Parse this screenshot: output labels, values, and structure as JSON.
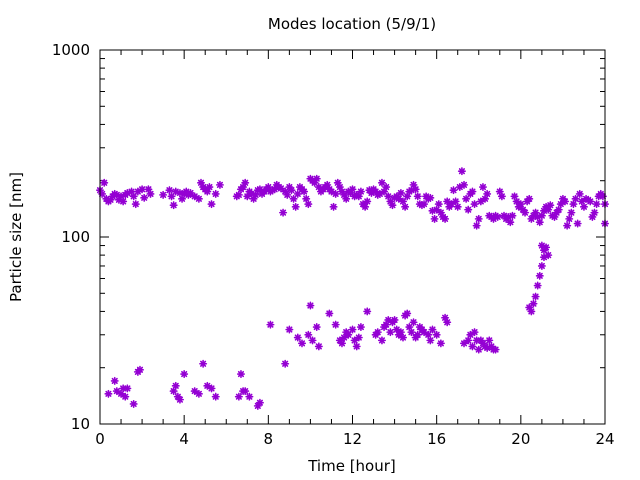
{
  "chart_data": {
    "type": "scatter",
    "title": "Modes location (5/9/1)",
    "xlabel": "Time [hour]",
    "ylabel": "Particle size [nm]",
    "xlim": [
      0,
      24
    ],
    "ylim": [
      10,
      1000
    ],
    "yscale": "log",
    "x_ticks": [
      0,
      4,
      8,
      12,
      16,
      20,
      24
    ],
    "x_tick_labels": [
      "0",
      "4",
      "8",
      "12",
      "16",
      "20",
      "24"
    ],
    "y_ticks": [
      10,
      100,
      1000
    ],
    "y_tick_labels": [
      "10",
      "100",
      "1000"
    ],
    "marker": "asterisk",
    "marker_color": "#9400D3",
    "grid": false,
    "legend": "none",
    "series": [
      {
        "points": [
          [
            0.0,
            178
          ],
          [
            0.1,
            170
          ],
          [
            0.2,
            195
          ],
          [
            0.3,
            160
          ],
          [
            0.4,
            155
          ],
          [
            0.5,
            158
          ],
          [
            0.6,
            165
          ],
          [
            0.7,
            170
          ],
          [
            0.8,
            168
          ],
          [
            0.9,
            158
          ],
          [
            1.0,
            165
          ],
          [
            1.1,
            155
          ],
          [
            1.2,
            168
          ],
          [
            1.3,
            172
          ],
          [
            1.5,
            175
          ],
          [
            1.6,
            165
          ],
          [
            1.7,
            150
          ],
          [
            1.8,
            175
          ],
          [
            2.0,
            180
          ],
          [
            2.1,
            162
          ],
          [
            2.3,
            180
          ],
          [
            2.4,
            170
          ],
          [
            3.0,
            168
          ],
          [
            3.3,
            178
          ],
          [
            3.4,
            165
          ],
          [
            3.5,
            148
          ],
          [
            3.6,
            175
          ],
          [
            3.8,
            172
          ],
          [
            3.9,
            160
          ],
          [
            4.0,
            170
          ],
          [
            4.1,
            175
          ],
          [
            4.2,
            168
          ],
          [
            4.3,
            172
          ],
          [
            4.5,
            165
          ],
          [
            4.7,
            160
          ],
          [
            4.8,
            195
          ],
          [
            4.9,
            185
          ],
          [
            5.0,
            180
          ],
          [
            5.1,
            175
          ],
          [
            5.2,
            185
          ],
          [
            5.3,
            150
          ],
          [
            5.5,
            170
          ],
          [
            5.7,
            190
          ],
          [
            6.5,
            165
          ],
          [
            6.6,
            168
          ],
          [
            6.7,
            180
          ],
          [
            6.8,
            185
          ],
          [
            6.9,
            195
          ],
          [
            7.0,
            165
          ],
          [
            7.1,
            175
          ],
          [
            7.2,
            170
          ],
          [
            7.3,
            160
          ],
          [
            7.4,
            168
          ],
          [
            7.5,
            178
          ],
          [
            7.6,
            180
          ],
          [
            7.7,
            170
          ],
          [
            7.8,
            175
          ],
          [
            7.9,
            180
          ],
          [
            8.0,
            185
          ],
          [
            8.1,
            175
          ],
          [
            8.2,
            178
          ],
          [
            8.3,
            180
          ],
          [
            8.4,
            190
          ],
          [
            8.5,
            185
          ],
          [
            8.6,
            182
          ],
          [
            8.7,
            135
          ],
          [
            8.8,
            175
          ],
          [
            8.9,
            168
          ],
          [
            9.0,
            185
          ],
          [
            9.1,
            178
          ],
          [
            9.2,
            160
          ],
          [
            9.3,
            145
          ],
          [
            9.4,
            170
          ],
          [
            9.5,
            185
          ],
          [
            9.6,
            180
          ],
          [
            9.7,
            175
          ],
          [
            9.8,
            160
          ],
          [
            9.9,
            150
          ],
          [
            10.0,
            205
          ],
          [
            10.1,
            200
          ],
          [
            10.2,
            195
          ],
          [
            10.3,
            205
          ],
          [
            10.4,
            185
          ],
          [
            10.5,
            175
          ],
          [
            10.6,
            180
          ],
          [
            10.7,
            185
          ],
          [
            10.8,
            190
          ],
          [
            10.9,
            180
          ],
          [
            11.0,
            175
          ],
          [
            11.1,
            145
          ],
          [
            11.2,
            170
          ],
          [
            11.3,
            195
          ],
          [
            11.4,
            185
          ],
          [
            11.5,
            175
          ],
          [
            11.6,
            168
          ],
          [
            11.7,
            160
          ],
          [
            11.8,
            175
          ],
          [
            11.9,
            172
          ],
          [
            12.0,
            180
          ],
          [
            12.1,
            165
          ],
          [
            12.2,
            168
          ],
          [
            12.3,
            165
          ],
          [
            12.4,
            175
          ],
          [
            12.5,
            150
          ],
          [
            12.6,
            145
          ],
          [
            12.7,
            155
          ],
          [
            12.8,
            178
          ],
          [
            12.9,
            172
          ],
          [
            13.0,
            180
          ],
          [
            13.1,
            175
          ],
          [
            13.2,
            168
          ],
          [
            13.3,
            170
          ],
          [
            13.4,
            195
          ],
          [
            13.5,
            175
          ],
          [
            13.6,
            185
          ],
          [
            13.7,
            165
          ],
          [
            13.8,
            155
          ],
          [
            13.9,
            148
          ],
          [
            14.0,
            162
          ],
          [
            14.1,
            165
          ],
          [
            14.2,
            160
          ],
          [
            14.3,
            172
          ],
          [
            14.4,
            155
          ],
          [
            14.5,
            145
          ],
          [
            14.6,
            165
          ],
          [
            14.7,
            175
          ],
          [
            14.8,
            178
          ],
          [
            14.9,
            190
          ],
          [
            15.0,
            180
          ],
          [
            15.1,
            165
          ],
          [
            15.2,
            150
          ],
          [
            15.3,
            148
          ],
          [
            15.4,
            150
          ],
          [
            15.5,
            165
          ],
          [
            15.6,
            160
          ],
          [
            15.7,
            162
          ],
          [
            15.8,
            138
          ],
          [
            15.9,
            125
          ],
          [
            16.0,
            140
          ],
          [
            16.1,
            150
          ],
          [
            16.2,
            135
          ],
          [
            16.3,
            128
          ],
          [
            16.4,
            125
          ],
          [
            16.5,
            155
          ],
          [
            16.6,
            145
          ],
          [
            16.7,
            150
          ],
          [
            16.8,
            178
          ],
          [
            16.9,
            155
          ],
          [
            17.0,
            145
          ],
          [
            17.1,
            185
          ],
          [
            17.2,
            225
          ],
          [
            17.3,
            190
          ],
          [
            17.4,
            160
          ],
          [
            17.5,
            140
          ],
          [
            17.6,
            170
          ],
          [
            17.7,
            175
          ],
          [
            17.8,
            150
          ],
          [
            17.9,
            115
          ],
          [
            18.0,
            125
          ],
          [
            18.1,
            155
          ],
          [
            18.2,
            185
          ],
          [
            18.3,
            160
          ],
          [
            18.4,
            170
          ],
          [
            18.5,
            130
          ],
          [
            18.6,
            128
          ],
          [
            18.7,
            125
          ],
          [
            18.8,
            130
          ],
          [
            18.9,
            128
          ],
          [
            19.0,
            175
          ],
          [
            19.1,
            165
          ],
          [
            19.2,
            130
          ],
          [
            19.3,
            125
          ],
          [
            19.4,
            128
          ],
          [
            19.5,
            120
          ],
          [
            19.6,
            130
          ],
          [
            19.7,
            165
          ],
          [
            19.8,
            155
          ],
          [
            19.9,
            145
          ],
          [
            20.0,
            150
          ],
          [
            20.1,
            140
          ],
          [
            20.2,
            135
          ],
          [
            20.3,
            155
          ],
          [
            20.4,
            160
          ],
          [
            20.5,
            125
          ],
          [
            20.6,
            130
          ],
          [
            20.7,
            135
          ],
          [
            20.8,
            128
          ],
          [
            20.9,
            120
          ],
          [
            21.0,
            130
          ],
          [
            21.1,
            138
          ],
          [
            21.2,
            145
          ],
          [
            21.3,
            140
          ],
          [
            21.4,
            148
          ],
          [
            21.5,
            130
          ],
          [
            21.6,
            128
          ],
          [
            21.7,
            135
          ],
          [
            21.8,
            140
          ],
          [
            21.9,
            150
          ],
          [
            22.0,
            160
          ],
          [
            22.1,
            155
          ],
          [
            22.2,
            115
          ],
          [
            22.3,
            125
          ],
          [
            22.4,
            135
          ],
          [
            22.5,
            150
          ],
          [
            22.6,
            160
          ],
          [
            22.7,
            118
          ],
          [
            22.8,
            170
          ],
          [
            22.9,
            155
          ],
          [
            23.0,
            145
          ],
          [
            23.1,
            160
          ],
          [
            23.2,
            158
          ],
          [
            23.3,
            155
          ],
          [
            23.4,
            128
          ],
          [
            23.5,
            135
          ],
          [
            23.6,
            150
          ],
          [
            23.7,
            165
          ],
          [
            23.8,
            170
          ],
          [
            23.9,
            165
          ],
          [
            24.0,
            118
          ],
          [
            24.0,
            150
          ],
          [
            0.4,
            14.5
          ],
          [
            0.7,
            17
          ],
          [
            0.8,
            15
          ],
          [
            1.0,
            14.5
          ],
          [
            1.1,
            15.5
          ],
          [
            1.2,
            14
          ],
          [
            1.3,
            15.5
          ],
          [
            1.6,
            12.8
          ],
          [
            1.8,
            19
          ],
          [
            1.9,
            19.5
          ],
          [
            3.5,
            15
          ],
          [
            3.6,
            16
          ],
          [
            3.7,
            14
          ],
          [
            3.8,
            13.5
          ],
          [
            4.0,
            18.5
          ],
          [
            4.5,
            15
          ],
          [
            4.7,
            14.5
          ],
          [
            4.9,
            21
          ],
          [
            5.1,
            16
          ],
          [
            5.3,
            15.5
          ],
          [
            5.5,
            14
          ],
          [
            6.6,
            14
          ],
          [
            6.7,
            18.5
          ],
          [
            6.8,
            15
          ],
          [
            6.9,
            15
          ],
          [
            7.1,
            14
          ],
          [
            7.5,
            12.5
          ],
          [
            7.6,
            13
          ],
          [
            8.1,
            34
          ],
          [
            8.8,
            21
          ],
          [
            9.0,
            32
          ],
          [
            9.4,
            29
          ],
          [
            9.6,
            27
          ],
          [
            9.9,
            30
          ],
          [
            10.0,
            43
          ],
          [
            10.1,
            28
          ],
          [
            10.3,
            33
          ],
          [
            10.4,
            26
          ],
          [
            10.9,
            39
          ],
          [
            11.2,
            34
          ],
          [
            11.4,
            28
          ],
          [
            11.5,
            27
          ],
          [
            11.6,
            29
          ],
          [
            11.7,
            31
          ],
          [
            11.8,
            30
          ],
          [
            12.0,
            32
          ],
          [
            12.1,
            28
          ],
          [
            12.2,
            26
          ],
          [
            12.3,
            29
          ],
          [
            12.4,
            33
          ],
          [
            12.7,
            40
          ],
          [
            13.1,
            30
          ],
          [
            13.2,
            31
          ],
          [
            13.4,
            28
          ],
          [
            13.5,
            33
          ],
          [
            13.6,
            34
          ],
          [
            13.7,
            36
          ],
          [
            13.8,
            31
          ],
          [
            13.9,
            35
          ],
          [
            14.0,
            36
          ],
          [
            14.1,
            32
          ],
          [
            14.2,
            30
          ],
          [
            14.3,
            31
          ],
          [
            14.4,
            29
          ],
          [
            14.5,
            38
          ],
          [
            14.6,
            39
          ],
          [
            14.7,
            33
          ],
          [
            14.8,
            31
          ],
          [
            14.9,
            35
          ],
          [
            15.0,
            29
          ],
          [
            15.1,
            30
          ],
          [
            15.2,
            33
          ],
          [
            15.3,
            32
          ],
          [
            15.4,
            31
          ],
          [
            15.6,
            30
          ],
          [
            15.7,
            28
          ],
          [
            15.8,
            32
          ],
          [
            16.0,
            30
          ],
          [
            16.2,
            27
          ],
          [
            16.4,
            37
          ],
          [
            16.5,
            35
          ],
          [
            17.3,
            27
          ],
          [
            17.5,
            28
          ],
          [
            17.6,
            30
          ],
          [
            17.7,
            26
          ],
          [
            17.8,
            31
          ],
          [
            17.9,
            28
          ],
          [
            18.0,
            25
          ],
          [
            18.1,
            28
          ],
          [
            18.2,
            27
          ],
          [
            18.3,
            26
          ],
          [
            18.4,
            25.5
          ],
          [
            18.5,
            28
          ],
          [
            18.6,
            26
          ],
          [
            18.7,
            25
          ],
          [
            18.8,
            25
          ],
          [
            20.4,
            42
          ],
          [
            20.5,
            40
          ],
          [
            20.6,
            44
          ],
          [
            20.7,
            48
          ],
          [
            20.8,
            55
          ],
          [
            20.9,
            62
          ],
          [
            21.0,
            70
          ],
          [
            21.1,
            78
          ],
          [
            21.0,
            90
          ],
          [
            21.1,
            85
          ],
          [
            21.2,
            88
          ],
          [
            21.3,
            80
          ]
        ]
      }
    ]
  }
}
